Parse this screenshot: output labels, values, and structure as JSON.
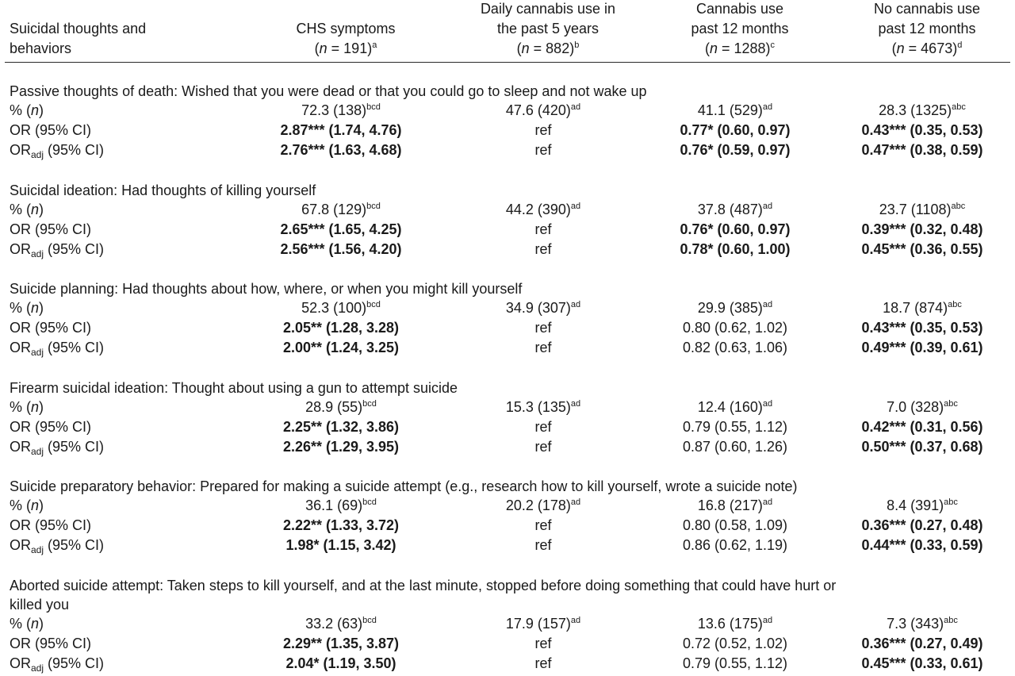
{
  "header": {
    "col0": [
      "Suicidal thoughts and",
      "behaviors"
    ],
    "col1": {
      "line1": "CHS symptoms",
      "n": "191",
      "sup": "a"
    },
    "col2": {
      "line1": "Daily cannabis use in",
      "line2": "the past 5 years",
      "n": "882",
      "sup": "b"
    },
    "col3": {
      "line1": "Cannabis use",
      "line2": "past 12 months",
      "n": "1288",
      "sup": "c"
    },
    "col4": {
      "line1": "No cannabis use",
      "line2": "past 12 months",
      "n": "4673",
      "sup": "d"
    },
    "n_prefix": "(",
    "n_var": "n",
    "n_eq": " = "
  },
  "row_labels": {
    "pct": "% (",
    "pct_var": "n",
    "pct_close": ")",
    "or": "OR (95% CI)",
    "oradj_pre": "OR",
    "oradj_sub": "adj",
    "oradj_post": " (95% CI)"
  },
  "sections": [
    {
      "title": "Passive thoughts of death: Wished that you were dead or that you could go to sleep and not wake up",
      "title2": "",
      "pct": [
        {
          "v": "72.3 (138)",
          "s": "bcd"
        },
        {
          "v": "47.6 (420)",
          "s": "ad"
        },
        {
          "v": "41.1 (529)",
          "s": "ad"
        },
        {
          "v": "28.3 (1325)",
          "s": "abc"
        }
      ],
      "or": [
        {
          "v": "2.87*** (1.74, 4.76)",
          "b": true
        },
        {
          "v": "ref",
          "b": false
        },
        {
          "v": "0.77* (0.60, 0.97)",
          "b": true
        },
        {
          "v": "0.43*** (0.35, 0.53)",
          "b": true
        }
      ],
      "oradj": [
        {
          "v": "2.76*** (1.63, 4.68)",
          "b": true
        },
        {
          "v": "ref",
          "b": false
        },
        {
          "v": "0.76* (0.59, 0.97)",
          "b": true
        },
        {
          "v": "0.47*** (0.38, 0.59)",
          "b": true
        }
      ]
    },
    {
      "title": "Suicidal ideation: Had thoughts of killing yourself",
      "title2": "",
      "pct": [
        {
          "v": "67.8 (129)",
          "s": "bcd"
        },
        {
          "v": "44.2 (390)",
          "s": "ad"
        },
        {
          "v": "37.8 (487)",
          "s": "ad"
        },
        {
          "v": "23.7 (1108)",
          "s": "abc"
        }
      ],
      "or": [
        {
          "v": "2.65*** (1.65, 4.25)",
          "b": true
        },
        {
          "v": "ref",
          "b": false
        },
        {
          "v": "0.76* (0.60, 0.97)",
          "b": true
        },
        {
          "v": "0.39*** (0.32, 0.48)",
          "b": true
        }
      ],
      "oradj": [
        {
          "v": "2.56*** (1.56, 4.20)",
          "b": true
        },
        {
          "v": "ref",
          "b": false
        },
        {
          "v": "0.78* (0.60, 1.00)",
          "b": true
        },
        {
          "v": "0.45*** (0.36, 0.55)",
          "b": true
        }
      ]
    },
    {
      "title": "Suicide planning: Had thoughts about how, where, or when you might kill yourself",
      "title2": "",
      "pct": [
        {
          "v": "52.3 (100)",
          "s": "bcd"
        },
        {
          "v": "34.9 (307)",
          "s": "ad"
        },
        {
          "v": "29.9 (385)",
          "s": "ad"
        },
        {
          "v": "18.7 (874)",
          "s": "abc"
        }
      ],
      "or": [
        {
          "v": "2.05** (1.28, 3.28)",
          "b": true
        },
        {
          "v": "ref",
          "b": false
        },
        {
          "v": "0.80 (0.62, 1.02)",
          "b": false
        },
        {
          "v": "0.43*** (0.35, 0.53)",
          "b": true
        }
      ],
      "oradj": [
        {
          "v": "2.00** (1.24, 3.25)",
          "b": true
        },
        {
          "v": "ref",
          "b": false
        },
        {
          "v": "0.82 (0.63, 1.06)",
          "b": false
        },
        {
          "v": "0.49*** (0.39, 0.61)",
          "b": true
        }
      ]
    },
    {
      "title": "Firearm suicidal ideation: Thought about using a gun to attempt suicide",
      "title2": "",
      "pct": [
        {
          "v": "28.9 (55)",
          "s": "bcd"
        },
        {
          "v": "15.3 (135)",
          "s": "ad"
        },
        {
          "v": "12.4 (160)",
          "s": "ad"
        },
        {
          "v": "7.0 (328)",
          "s": "abc"
        }
      ],
      "or": [
        {
          "v": "2.25** (1.32, 3.86)",
          "b": true
        },
        {
          "v": "ref",
          "b": false
        },
        {
          "v": "0.79 (0.55, 1.12)",
          "b": false
        },
        {
          "v": "0.42*** (0.31, 0.56)",
          "b": true
        }
      ],
      "oradj": [
        {
          "v": "2.26** (1.29, 3.95)",
          "b": true
        },
        {
          "v": "ref",
          "b": false
        },
        {
          "v": "0.87 (0.60, 1.26)",
          "b": false
        },
        {
          "v": "0.50*** (0.37, 0.68)",
          "b": true
        }
      ]
    },
    {
      "title": "Suicide preparatory behavior: Prepared for making a suicide attempt (e.g., research how to kill yourself, wrote a suicide note)",
      "title2": "",
      "pct": [
        {
          "v": "36.1 (69)",
          "s": "bcd"
        },
        {
          "v": "20.2 (178)",
          "s": "ad"
        },
        {
          "v": "16.8 (217)",
          "s": "ad"
        },
        {
          "v": "8.4 (391)",
          "s": "abc"
        }
      ],
      "or": [
        {
          "v": "2.22** (1.33, 3.72)",
          "b": true
        },
        {
          "v": "ref",
          "b": false
        },
        {
          "v": "0.80 (0.58, 1.09)",
          "b": false
        },
        {
          "v": "0.36*** (0.27, 0.48)",
          "b": true
        }
      ],
      "oradj": [
        {
          "v": "1.98* (1.15, 3.42)",
          "b": true
        },
        {
          "v": "ref",
          "b": false
        },
        {
          "v": "0.86 (0.62, 1.19)",
          "b": false
        },
        {
          "v": "0.44*** (0.33, 0.59)",
          "b": true
        }
      ]
    },
    {
      "title": "Aborted suicide attempt: Taken steps to kill yourself, and at the last minute, stopped before doing something that could have hurt or",
      "title2": "killed you",
      "pct": [
        {
          "v": "33.2 (63)",
          "s": "bcd"
        },
        {
          "v": "17.9 (157)",
          "s": "ad"
        },
        {
          "v": "13.6 (175)",
          "s": "ad"
        },
        {
          "v": "7.3 (343)",
          "s": "abc"
        }
      ],
      "or": [
        {
          "v": "2.29** (1.35, 3.87)",
          "b": true
        },
        {
          "v": "ref",
          "b": false
        },
        {
          "v": "0.72 (0.52, 1.02)",
          "b": false
        },
        {
          "v": "0.36*** (0.27, 0.49)",
          "b": true
        }
      ],
      "oradj": [
        {
          "v": "2.04* (1.19, 3.50)",
          "b": true
        },
        {
          "v": "ref",
          "b": false
        },
        {
          "v": "0.79 (0.55, 1.12)",
          "b": false
        },
        {
          "v": "0.45*** (0.33, 0.61)",
          "b": true
        }
      ]
    }
  ]
}
